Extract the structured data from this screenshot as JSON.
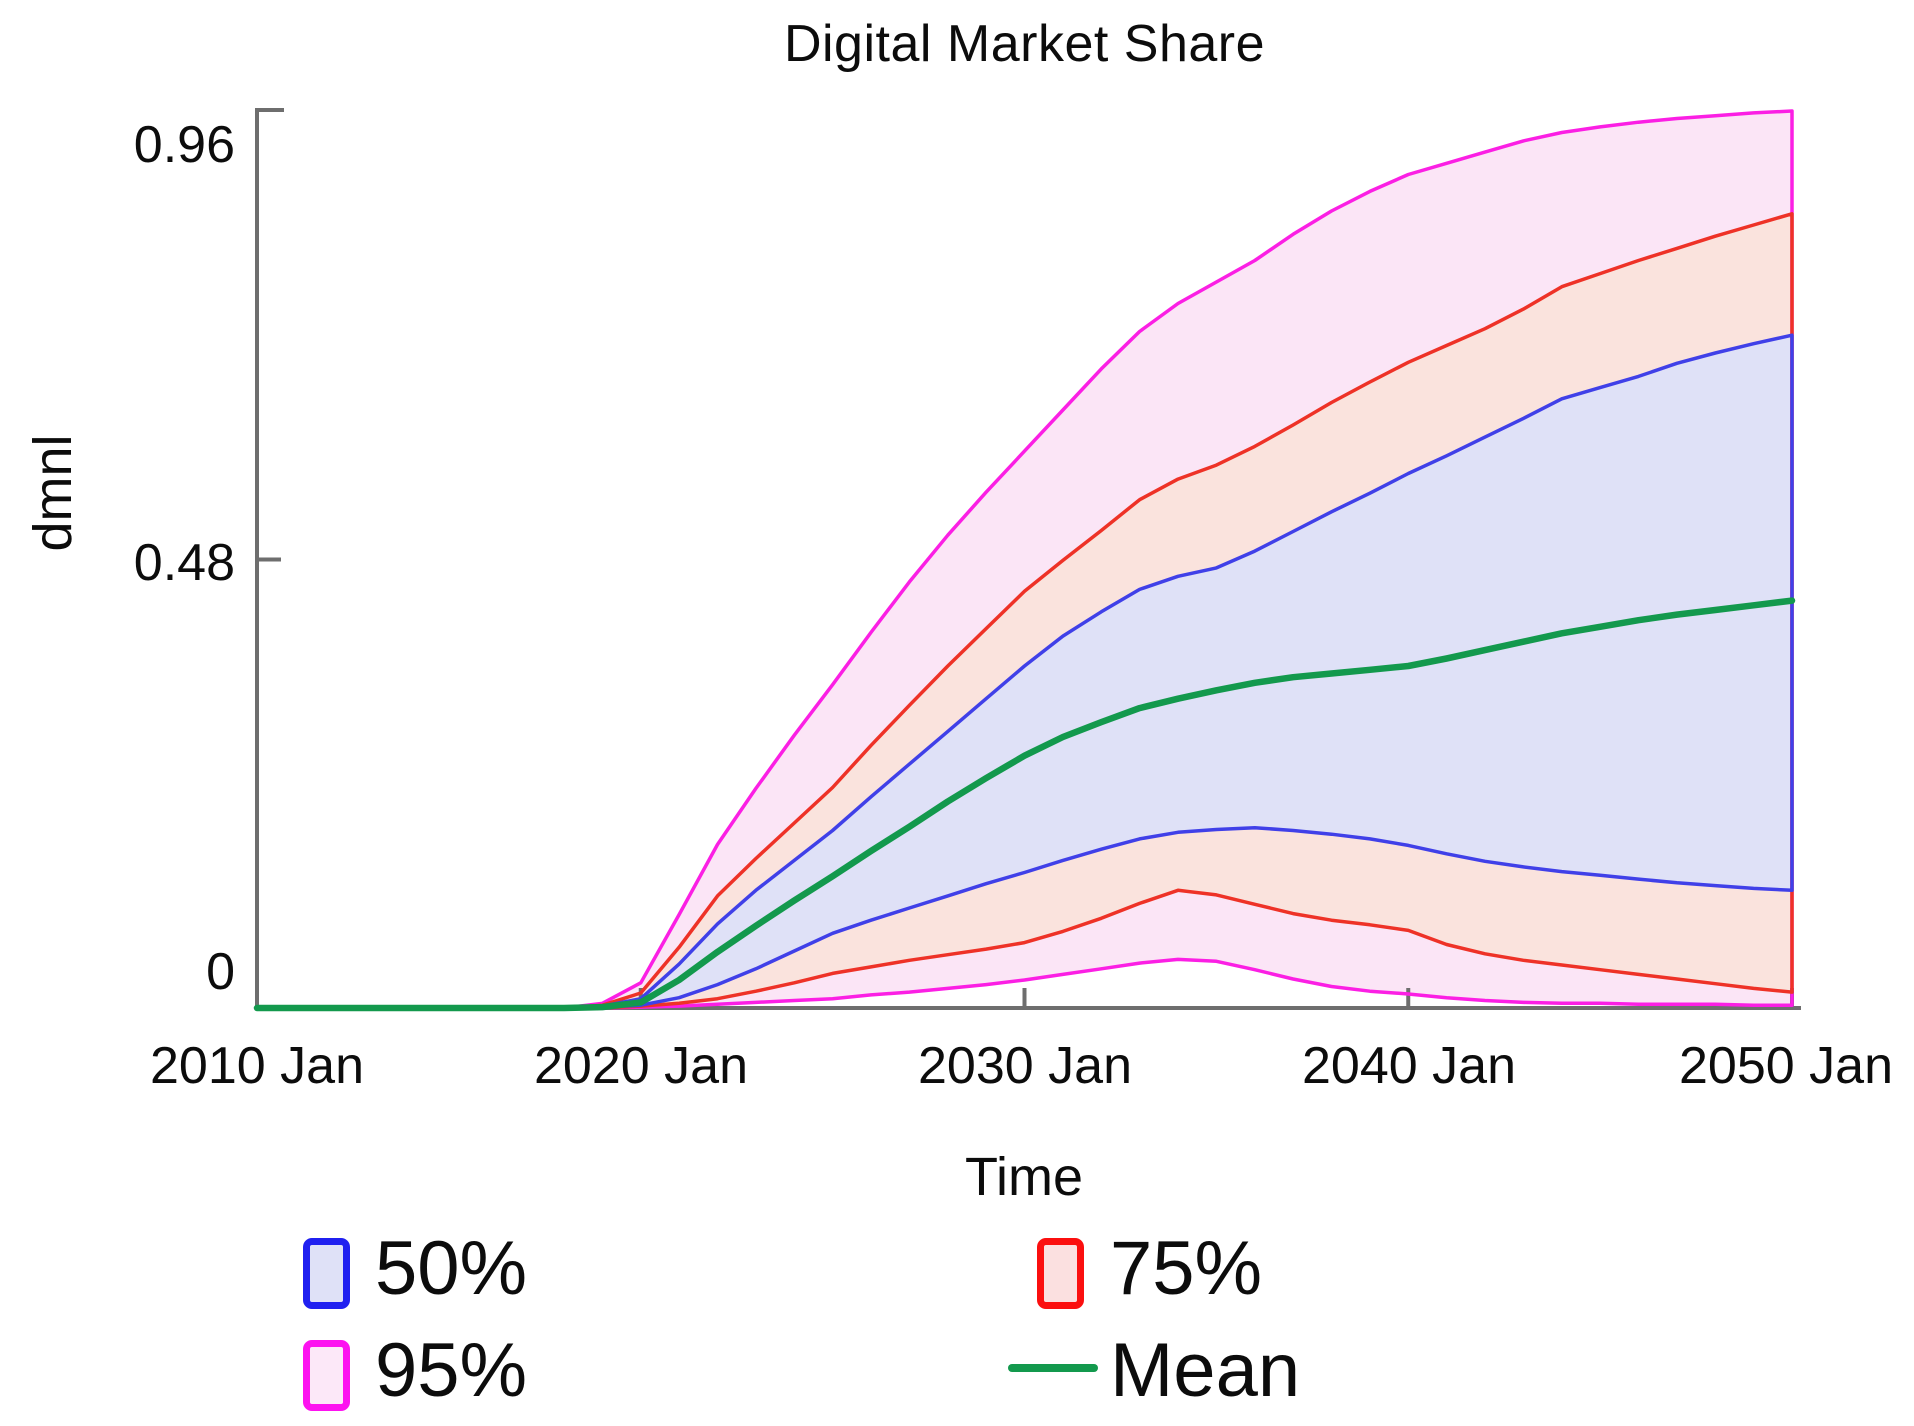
{
  "title": "Digital Market Share",
  "axes": {
    "y_label": "dmnl",
    "x_label": "Time",
    "y_ticks": [
      "0.96",
      "0.48",
      "0"
    ],
    "x_ticks": [
      "2010 Jan",
      "2020 Jan",
      "2030 Jan",
      "2040 Jan",
      "2050 Jan"
    ]
  },
  "colors": {
    "axis": "#6e6e6e",
    "band50_line": "#4040e8",
    "band50_fill": "#dfe1f7",
    "band75_line": "#ee3227",
    "band75_fill": "#fae3dd",
    "band95_line": "#fb1fe4",
    "band95_fill": "#fbe5f6",
    "mean_line": "#13994d"
  },
  "legend": {
    "items": [
      {
        "label": "50%",
        "swatch": "box",
        "line_color": "#2020f0",
        "fill_color": "#dfe1f7"
      },
      {
        "label": "75%",
        "swatch": "box",
        "line_color": "#fb0f0f",
        "fill_color": "#fbe0e0"
      },
      {
        "label": "95%",
        "swatch": "box",
        "line_color": "#fd12f0",
        "fill_color": "#fce8f8"
      },
      {
        "label": "Mean",
        "swatch": "line",
        "line_color": "#13994d",
        "fill_color": ""
      }
    ]
  },
  "chart_data": {
    "type": "area",
    "subtype": "fan-chart-confidence-bands",
    "title": "Digital Market Share",
    "xlabel": "Time",
    "ylabel": "dmnl",
    "xlim": [
      2010,
      2050
    ],
    "ylim": [
      0,
      0.96
    ],
    "grid": false,
    "legend_position": "bottom",
    "x_years": [
      2010,
      2012,
      2014,
      2016,
      2018,
      2019,
      2020,
      2021,
      2022,
      2023,
      2024,
      2025,
      2026,
      2027,
      2028,
      2029,
      2030,
      2031,
      2032,
      2033,
      2034,
      2035,
      2036,
      2037,
      2038,
      2039,
      2040,
      2041,
      2042,
      2043,
      2044,
      2045,
      2046,
      2047,
      2048,
      2049,
      2050
    ],
    "bands": [
      {
        "name": "95%",
        "low": [
          0,
          0,
          0,
          0,
          0,
          0,
          0.001,
          0.002,
          0.004,
          0.006,
          0.008,
          0.01,
          0.014,
          0.017,
          0.021,
          0.025,
          0.03,
          0.036,
          0.042,
          0.048,
          0.052,
          0.05,
          0.041,
          0.031,
          0.023,
          0.018,
          0.015,
          0.011,
          0.008,
          0.006,
          0.005,
          0.005,
          0.004,
          0.004,
          0.004,
          0.003,
          0.003
        ],
        "high": [
          0,
          0,
          0,
          0,
          0,
          0.005,
          0.027,
          0.1,
          0.175,
          0.235,
          0.292,
          0.346,
          0.402,
          0.456,
          0.506,
          0.552,
          0.596,
          0.64,
          0.684,
          0.724,
          0.754,
          0.777,
          0.8,
          0.828,
          0.853,
          0.874,
          0.892,
          0.904,
          0.916,
          0.928,
          0.937,
          0.943,
          0.948,
          0.952,
          0.955,
          0.958,
          0.96
        ]
      },
      {
        "name": "75%",
        "low": [
          0,
          0,
          0,
          0,
          0,
          0,
          0.002,
          0.005,
          0.01,
          0.018,
          0.027,
          0.037,
          0.044,
          0.051,
          0.057,
          0.063,
          0.07,
          0.082,
          0.096,
          0.112,
          0.126,
          0.121,
          0.111,
          0.101,
          0.094,
          0.089,
          0.083,
          0.068,
          0.058,
          0.051,
          0.046,
          0.041,
          0.036,
          0.031,
          0.026,
          0.021,
          0.017
        ],
        "high": [
          0,
          0,
          0,
          0,
          0,
          0.003,
          0.016,
          0.065,
          0.12,
          0.16,
          0.198,
          0.236,
          0.281,
          0.324,
          0.366,
          0.406,
          0.446,
          0.479,
          0.511,
          0.544,
          0.566,
          0.581,
          0.601,
          0.624,
          0.648,
          0.67,
          0.691,
          0.709,
          0.727,
          0.748,
          0.772,
          0.786,
          0.8,
          0.813,
          0.826,
          0.838,
          0.85
        ]
      },
      {
        "name": "50%",
        "low": [
          0,
          0,
          0,
          0,
          0,
          0.001,
          0.003,
          0.011,
          0.025,
          0.042,
          0.061,
          0.08,
          0.094,
          0.107,
          0.12,
          0.133,
          0.145,
          0.158,
          0.17,
          0.181,
          0.188,
          0.191,
          0.193,
          0.19,
          0.186,
          0.181,
          0.174,
          0.165,
          0.157,
          0.151,
          0.146,
          0.142,
          0.138,
          0.134,
          0.131,
          0.128,
          0.126
        ],
        "high": [
          0,
          0,
          0,
          0,
          0,
          0.002,
          0.01,
          0.047,
          0.09,
          0.126,
          0.158,
          0.19,
          0.226,
          0.261,
          0.296,
          0.331,
          0.366,
          0.398,
          0.424,
          0.448,
          0.462,
          0.471,
          0.489,
          0.51,
          0.531,
          0.551,
          0.572,
          0.591,
          0.611,
          0.631,
          0.652,
          0.664,
          0.676,
          0.69,
          0.701,
          0.711,
          0.72
        ]
      }
    ],
    "mean": {
      "name": "Mean",
      "values": [
        0,
        0,
        0,
        0,
        0,
        0.001,
        0.006,
        0.03,
        0.06,
        0.088,
        0.115,
        0.141,
        0.168,
        0.194,
        0.221,
        0.246,
        0.27,
        0.29,
        0.306,
        0.321,
        0.331,
        0.34,
        0.348,
        0.354,
        0.358,
        0.362,
        0.366,
        0.374,
        0.383,
        0.392,
        0.401,
        0.408,
        0.415,
        0.421,
        0.426,
        0.431,
        0.436
      ]
    }
  }
}
